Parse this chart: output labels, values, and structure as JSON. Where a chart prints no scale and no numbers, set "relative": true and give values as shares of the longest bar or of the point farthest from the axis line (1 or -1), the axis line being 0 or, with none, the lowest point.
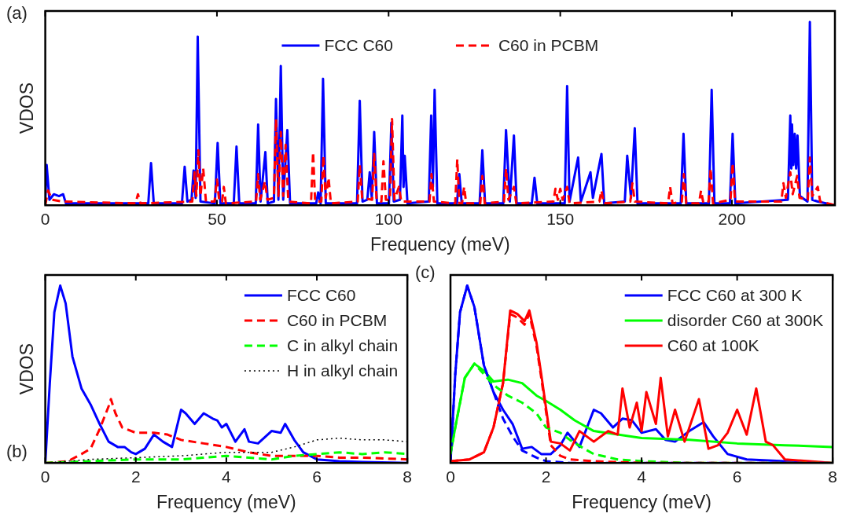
{
  "chart_data": [
    {
      "type": "line",
      "relative": true,
      "xlabel": "Frequency (meV)",
      "ylabel": "VDOS",
      "annotations": [
        "(a)"
      ],
      "xlim": [
        0,
        230
      ],
      "xticks": [
        0,
        50,
        100,
        150,
        200
      ],
      "grid": false,
      "legend": "top",
      "marker": "none",
      "series": [
        {
          "name": "FCC C60",
          "color": "#0000ff",
          "line_style": "solid",
          "x": [
            0,
            0.4,
            1.2,
            2.5,
            4,
            5.2,
            6,
            30,
            30.8,
            31.6,
            39.8,
            40.6,
            41.4,
            42.6,
            43.2,
            43.8,
            44.4,
            45.2,
            49.4,
            50.2,
            51,
            54.9,
            55.7,
            56.5,
            61.3,
            62,
            62.7,
            64.1,
            64.8,
            66.6,
            67.2,
            67.9,
            68.6,
            69.3,
            70.5,
            71.3,
            78.9,
            79.5,
            80.2,
            80.9,
            81.7,
            90.8,
            91.6,
            92.4,
            93.8,
            94.5,
            95.1,
            95.8,
            96.6,
            100.1,
            100.8,
            101.5,
            103.3,
            104,
            104.35,
            104.7,
            105.5,
            111.7,
            112.4,
            112.9,
            113.4,
            114.2,
            119.9,
            120.6,
            121.3,
            126.5,
            127.3,
            128.1,
            133.4,
            134.2,
            135.3,
            136.5,
            137.3,
            141.7,
            142.5,
            143.3,
            151.3,
            152,
            152.7,
            155.2,
            156,
            158.8,
            159.5,
            162,
            162.8,
            168.8,
            169.5,
            170.6,
            171.7,
            172.5,
            185.1,
            185.9,
            186.7,
            193.3,
            194.1,
            194.9,
            199.4,
            200.2,
            201,
            216.3,
            217,
            217.3,
            217.5,
            217.9,
            218.3,
            218.7,
            219.1,
            219.8,
            222,
            222.7,
            223.4,
            225,
            230
          ],
          "values": [
            0.02,
            0.22,
            0.03,
            0.06,
            0.05,
            0.06,
            0.01,
            0.01,
            0.23,
            0.01,
            0.01,
            0.21,
            0.02,
            0.03,
            0.19,
            0.04,
            0.92,
            0.02,
            0.01,
            0.34,
            0.01,
            0.01,
            0.32,
            0.01,
            0.01,
            0.44,
            0.02,
            0.29,
            0.01,
            0.02,
            0.58,
            0.03,
            0.76,
            0.03,
            0.41,
            0.01,
            0.01,
            0.07,
            0.01,
            0.69,
            0.01,
            0.01,
            0.57,
            0.02,
            0.03,
            0.18,
            0.04,
            0.4,
            0.01,
            0.01,
            0.45,
            0.02,
            0.03,
            0.49,
            0.1,
            0.27,
            0.01,
            0.02,
            0.49,
            0.1,
            0.63,
            0.01,
            0.01,
            0.17,
            0.01,
            0.01,
            0.3,
            0.01,
            0.01,
            0.41,
            0.02,
            0.38,
            0.01,
            0.01,
            0.15,
            0.01,
            0.01,
            0.65,
            0.02,
            0.26,
            0.02,
            0.18,
            0.04,
            0.28,
            0.01,
            0.02,
            0.27,
            0.04,
            0.42,
            0.01,
            0.01,
            0.39,
            0.01,
            0.01,
            0.63,
            0.01,
            0.01,
            0.39,
            0.01,
            0.03,
            0.49,
            0.2,
            0.44,
            0.22,
            0.39,
            0.2,
            0.38,
            0.05,
            0.02,
            1,
            0.03,
            0.02,
            0
          ]
        },
        {
          "name": "C60 in PCBM",
          "color": "#ff0000",
          "line_style": "dashed",
          "x": [
            0,
            0.8,
            2,
            5,
            26.3,
            27,
            27.7,
            42.8,
            43.5,
            44,
            44.6,
            45.2,
            46,
            46.8,
            49.3,
            50,
            50.7,
            51.5,
            52,
            52.6,
            61.4,
            62,
            62.6,
            64,
            64.7,
            66.6,
            67.2,
            67.9,
            68.6,
            69.3,
            70,
            70.8,
            77.4,
            78,
            78.6,
            80.4,
            81,
            81.7,
            82.5,
            83.2,
            91,
            91.6,
            92.3,
            95.2,
            95.8,
            96.5,
            97.9,
            98.5,
            99.2,
            100.4,
            101,
            101.7,
            103,
            103.7,
            111.9,
            112.5,
            113.2,
            119.4,
            120,
            120.6,
            121.4,
            122,
            122.6,
            126.7,
            127.3,
            128,
            133.6,
            134.2,
            134.9,
            136.5,
            137.2,
            148,
            148.6,
            149.3,
            150,
            150.7,
            152,
            152.7,
            161.4,
            162,
            162.7,
            170.4,
            171,
            171.7,
            181.4,
            182,
            182.7,
            185.4,
            186,
            186.7,
            190.4,
            191,
            191.7,
            193.2,
            193.8,
            194.5,
            199.6,
            200.2,
            200.9,
            214.4,
            215,
            215.7,
            217,
            217.7,
            219,
            219.7,
            222.1,
            222.7,
            223.4,
            225,
            225.7,
            230
          ],
          "values": [
            0,
            0.08,
            0.03,
            0.02,
            0.01,
            0.06,
            0.01,
            0.02,
            0.18,
            0.05,
            0.3,
            0.05,
            0.2,
            0.02,
            0.02,
            0.14,
            0.02,
            0.02,
            0.1,
            0.01,
            0.02,
            0.17,
            0.03,
            0.13,
            0.03,
            0.04,
            0.47,
            0.05,
            0.4,
            0.05,
            0.33,
            0.02,
            0.01,
            0.29,
            0.02,
            0.02,
            0.27,
            0.04,
            0.15,
            0.01,
            0.02,
            0.22,
            0.04,
            0.03,
            0.28,
            0.03,
            0.02,
            0.24,
            0.03,
            0.03,
            0.47,
            0.03,
            0.1,
            0.02,
            0.02,
            0.17,
            0.02,
            0.01,
            0.25,
            0.01,
            0.01,
            0.1,
            0.01,
            0.01,
            0.16,
            0.01,
            0.02,
            0.2,
            0.03,
            0.1,
            0.01,
            0.02,
            0.09,
            0.03,
            0.09,
            0.03,
            0.1,
            0.01,
            0.02,
            0.08,
            0.01,
            0.02,
            0.12,
            0.02,
            0.01,
            0.1,
            0.01,
            0.02,
            0.17,
            0.01,
            0.01,
            0.08,
            0.01,
            0.02,
            0.2,
            0.01,
            0.03,
            0.23,
            0.02,
            0.02,
            0.12,
            0.04,
            0.18,
            0.06,
            0.16,
            0.04,
            0.03,
            0.26,
            0.05,
            0.1,
            0.02,
            0
          ]
        }
      ]
    },
    {
      "type": "line",
      "relative": true,
      "xlabel": "Frequency (meV)",
      "ylabel": "VDOS",
      "annotations": [
        "(b)"
      ],
      "xlim": [
        0,
        8
      ],
      "xticks": [
        0,
        2,
        4,
        6,
        8
      ],
      "grid": false,
      "legend": "top right",
      "marker": "none",
      "series": [
        {
          "name": "FCC C60",
          "color": "#0000ff",
          "line_style": "solid",
          "x": [
            0,
            0.1,
            0.2,
            0.33,
            0.45,
            0.6,
            0.8,
            1.0,
            1.2,
            1.4,
            1.6,
            1.75,
            1.9,
            2.0,
            2.2,
            2.4,
            2.6,
            2.8,
            3.0,
            3.1,
            3.3,
            3.5,
            3.7,
            3.8,
            3.9,
            4.0,
            4.2,
            4.4,
            4.5,
            4.7,
            5.0,
            5.2,
            5.3,
            5.5,
            5.7,
            6.0,
            6.5,
            7,
            8
          ],
          "values": [
            0,
            0.45,
            0.85,
            1,
            0.9,
            0.6,
            0.42,
            0.33,
            0.22,
            0.12,
            0.09,
            0.09,
            0.06,
            0.05,
            0.08,
            0.16,
            0.12,
            0.09,
            0.3,
            0.28,
            0.22,
            0.28,
            0.25,
            0.24,
            0.2,
            0.22,
            0.12,
            0.19,
            0.12,
            0.11,
            0.18,
            0.17,
            0.22,
            0.13,
            0.06,
            0.02,
            0.01,
            0.005,
            0
          ]
        },
        {
          "name": "C60 in PCBM",
          "color": "#ff0000",
          "line_style": "dashed",
          "x": [
            0,
            0.5,
            0.8,
            1.0,
            1.2,
            1.4,
            1.45,
            1.55,
            1.7,
            2.0,
            2.4,
            2.7,
            3.0,
            3.5,
            4.0,
            4.5,
            5.0,
            5.5,
            6,
            6.5,
            7,
            8
          ],
          "values": [
            0,
            0.01,
            0.05,
            0.08,
            0.19,
            0.32,
            0.36,
            0.28,
            0.2,
            0.17,
            0.17,
            0.16,
            0.13,
            0.11,
            0.09,
            0.06,
            0.04,
            0.04,
            0.04,
            0.03,
            0.03,
            0.02
          ]
        },
        {
          "name": "C in alkyl chain",
          "color": "#00ff00",
          "line_style": "dashed",
          "x": [
            0,
            1,
            2,
            3,
            3.5,
            4,
            5,
            5.5,
            6,
            6.5,
            7,
            7.5,
            8
          ],
          "values": [
            0,
            0.01,
            0.02,
            0.02,
            0.03,
            0.04,
            0.02,
            0.04,
            0.05,
            0.06,
            0.05,
            0.06,
            0.05
          ]
        },
        {
          "name": "H in alkyl chain",
          "color": "#000000",
          "line_style": "dotted",
          "x": [
            0,
            1,
            2,
            3,
            4,
            5,
            5.5,
            6,
            6.5,
            7,
            7.5,
            8
          ],
          "values": [
            0,
            0.02,
            0.03,
            0.04,
            0.06,
            0.06,
            0.09,
            0.13,
            0.14,
            0.13,
            0.13,
            0.12
          ]
        }
      ]
    },
    {
      "type": "line",
      "relative": true,
      "xlabel": "Frequency (meV)",
      "annotations": [
        "(c)"
      ],
      "xlim": [
        0,
        8
      ],
      "xticks": [
        0,
        2,
        4,
        6,
        8
      ],
      "grid": false,
      "legend": "top right",
      "marker": "none",
      "series": [
        {
          "name": "FCC C60 at 300 K",
          "color": "#0000ff",
          "line_style": "solid",
          "x": [
            0,
            0.1,
            0.2,
            0.35,
            0.5,
            0.7,
            0.9,
            1.1,
            1.3,
            1.5,
            1.7,
            1.9,
            2.1,
            2.3,
            2.45,
            2.7,
            3.0,
            3.15,
            3.4,
            3.6,
            3.8,
            4.0,
            4.3,
            4.5,
            4.7,
            5.0,
            5.3,
            5.5,
            5.8,
            6.2,
            7,
            8
          ],
          "values": [
            0,
            0.5,
            0.85,
            1,
            0.88,
            0.55,
            0.4,
            0.3,
            0.22,
            0.08,
            0.09,
            0.05,
            0.05,
            0.1,
            0.17,
            0.09,
            0.3,
            0.28,
            0.2,
            0.25,
            0.24,
            0.17,
            0.19,
            0.13,
            0.12,
            0.18,
            0.23,
            0.15,
            0.05,
            0.02,
            0.01,
            0
          ]
        },
        {
          "name": "disorder C60 at 300K",
          "color": "#00ff00",
          "line_style": "solid",
          "x": [
            0,
            0.1,
            0.3,
            0.5,
            0.7,
            0.9,
            1.2,
            1.5,
            1.8,
            2.0,
            2.3,
            2.6,
            3.0,
            3.5,
            4,
            5,
            6,
            7,
            8
          ],
          "values": [
            0.05,
            0.2,
            0.48,
            0.56,
            0.52,
            0.46,
            0.47,
            0.45,
            0.38,
            0.35,
            0.3,
            0.24,
            0.18,
            0.16,
            0.14,
            0.13,
            0.11,
            0.1,
            0.09
          ]
        },
        {
          "name": "C60 at 100K",
          "color": "#ff0000",
          "line_style": "solid",
          "x": [
            0,
            0.4,
            0.7,
            0.9,
            1.1,
            1.25,
            1.4,
            1.55,
            1.65,
            1.8,
            1.9,
            2.1,
            2.3,
            2.5,
            2.7,
            3.0,
            3.3,
            3.5,
            3.6,
            3.75,
            3.9,
            4.0,
            4.1,
            4.3,
            4.4,
            4.55,
            4.7,
            4.9,
            5.2,
            5.4,
            5.6,
            5.8,
            6.0,
            6.2,
            6.4,
            6.6,
            6.75,
            7.0,
            8
          ],
          "values": [
            0.01,
            0.02,
            0.06,
            0.2,
            0.45,
            0.86,
            0.84,
            0.8,
            0.86,
            0.68,
            0.5,
            0.12,
            0.11,
            0.07,
            0.18,
            0.12,
            0.18,
            0.16,
            0.42,
            0.2,
            0.34,
            0.18,
            0.4,
            0.22,
            0.48,
            0.15,
            0.3,
            0.12,
            0.36,
            0.08,
            0.1,
            0.17,
            0.3,
            0.16,
            0.42,
            0.12,
            0.1,
            0.02,
            0
          ]
        },
        {
          "color": "#0000ff",
          "line_style": "dashed",
          "x": [
            0,
            0.1,
            0.2,
            0.35,
            0.5,
            0.7,
            0.9,
            1.1,
            1.3,
            1.5,
            1.8,
            2.0,
            2.5,
            8
          ],
          "values": [
            0,
            0.5,
            0.85,
            1,
            0.88,
            0.55,
            0.4,
            0.25,
            0.15,
            0.07,
            0.03,
            0.01,
            0,
            0
          ]
        },
        {
          "color": "#00ff00",
          "line_style": "dashed",
          "x": [
            0,
            0.1,
            0.3,
            0.5,
            0.7,
            0.9,
            1.2,
            1.5,
            1.8,
            2.0,
            2.3,
            2.5,
            2.8,
            3.0,
            3.5,
            4,
            5,
            8
          ],
          "values": [
            0.05,
            0.2,
            0.48,
            0.56,
            0.5,
            0.44,
            0.38,
            0.34,
            0.28,
            0.2,
            0.17,
            0.13,
            0.08,
            0.05,
            0.02,
            0.01,
            0,
            0
          ]
        },
        {
          "color": "#ff0000",
          "line_style": "dashed",
          "x": [
            0,
            0.4,
            0.7,
            0.9,
            1.1,
            1.25,
            1.4,
            1.55,
            1.65,
            1.8,
            1.9,
            2.1,
            2.3,
            2.5,
            3,
            4,
            8
          ],
          "values": [
            0.01,
            0.02,
            0.06,
            0.2,
            0.45,
            0.84,
            0.82,
            0.78,
            0.84,
            0.66,
            0.48,
            0.1,
            0.04,
            0.02,
            0.01,
            0,
            0
          ]
        }
      ]
    }
  ]
}
